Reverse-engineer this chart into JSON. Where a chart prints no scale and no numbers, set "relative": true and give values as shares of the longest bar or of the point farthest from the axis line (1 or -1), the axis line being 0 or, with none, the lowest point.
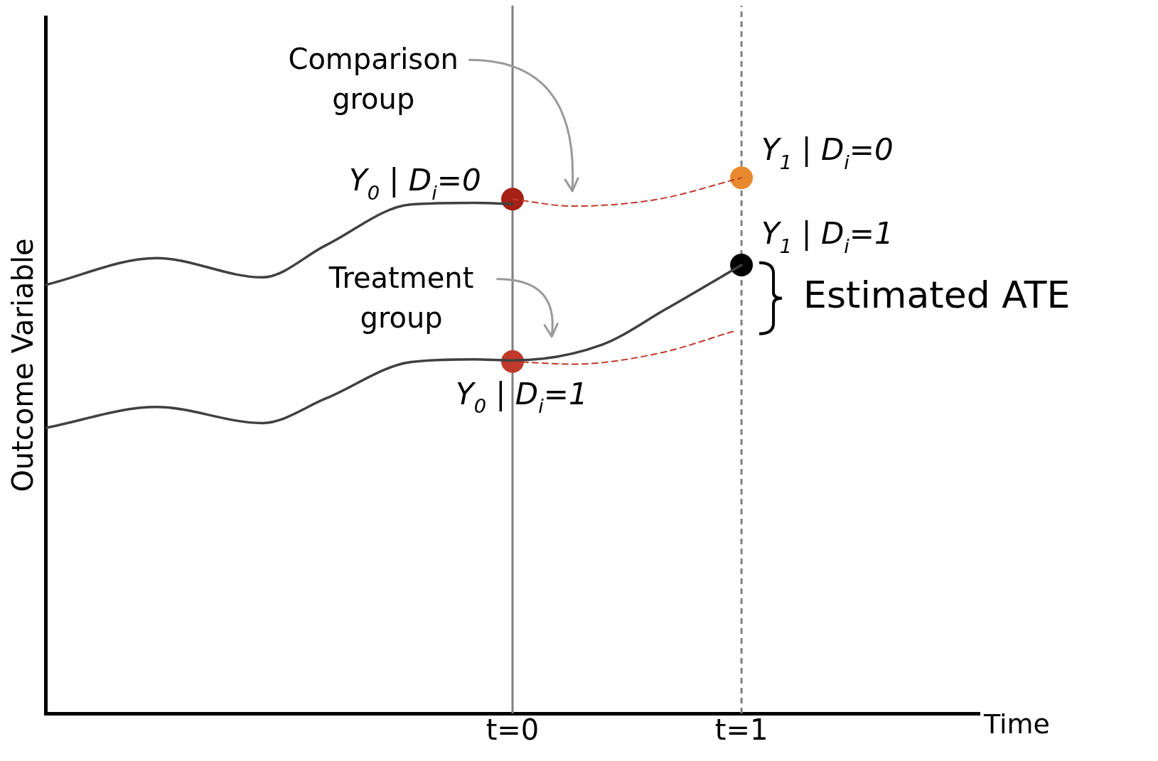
{
  "chart_data": {
    "type": "line",
    "relative": true,
    "xlabel": "Time",
    "ylabel": "Outcome Variable",
    "xlim": [
      -2.04,
      2.04
    ],
    "xticks": [
      {
        "value": 0,
        "label": "t=0"
      },
      {
        "value": 1,
        "label": "t=1"
      }
    ],
    "grid": false,
    "legend": false,
    "marker": "none",
    "series": [
      {
        "color": "#404040",
        "line_style": "solid",
        "x": [
          -2.04,
          -1.556,
          -1.093,
          -0.815,
          -0.444,
          -0.167,
          0
        ],
        "values": [
          0.8,
          0.85,
          0.814,
          0.874,
          0.95,
          0.953,
          0.951
        ]
      },
      {
        "color": "#404040",
        "line_style": "solid",
        "x": [
          -2.04,
          -1.556,
          -1.093,
          -0.815,
          -0.444,
          -0.167,
          0,
          0.389,
          0.667,
          1
        ],
        "values": [
          0.533,
          0.572,
          0.542,
          0.588,
          0.656,
          0.661,
          0.659,
          0.688,
          0.754,
          0.837
        ]
      },
      {
        "color": "#c0392b",
        "line_style": "dashed",
        "x": [
          0,
          0.265,
          0.636,
          1
        ],
        "values": [
          0.96,
          0.947,
          0.96,
          1
        ]
      },
      {
        "color": "#c0392b",
        "line_style": "dashed",
        "x": [
          0,
          0.265,
          0.636,
          0.963
        ],
        "values": [
          0.657,
          0.652,
          0.672,
          0.713
        ]
      },
      {
        "type": "scatter",
        "name": "Y$_{0}$ | D$_{i}$=0",
        "color": "#a52015",
        "marker": "circle",
        "x": [
          0
        ],
        "values": [
          0.96
        ]
      },
      {
        "type": "scatter",
        "name": "Y$_{1}$ | D$_{i}$=0",
        "color": "#e8892f",
        "marker": "circle",
        "x": [
          1
        ],
        "values": [
          1
        ]
      },
      {
        "type": "scatter",
        "name": "Y$_{1}$ | D$_{i}$=1",
        "color": "#000000",
        "marker": "circle",
        "x": [
          1
        ],
        "values": [
          0.837
        ]
      },
      {
        "type": "scatter",
        "name": "Y$_{0}$ | D$_{i}$=1",
        "color": "#c0392b",
        "marker": "circle",
        "x": [
          0
        ],
        "values": [
          0.657
        ]
      }
    ],
    "ref_lines": [
      {
        "axis": "x",
        "value": 0,
        "color": "#808080",
        "line_style": "solid"
      },
      {
        "axis": "x",
        "value": 1,
        "color": "#808080",
        "line_style": "dashed"
      }
    ],
    "annotations": [
      "Comparison group",
      "Treatment group",
      {
        "text": "Estimated ATE",
        "x": 1,
        "y": 0.775
      }
    ]
  }
}
